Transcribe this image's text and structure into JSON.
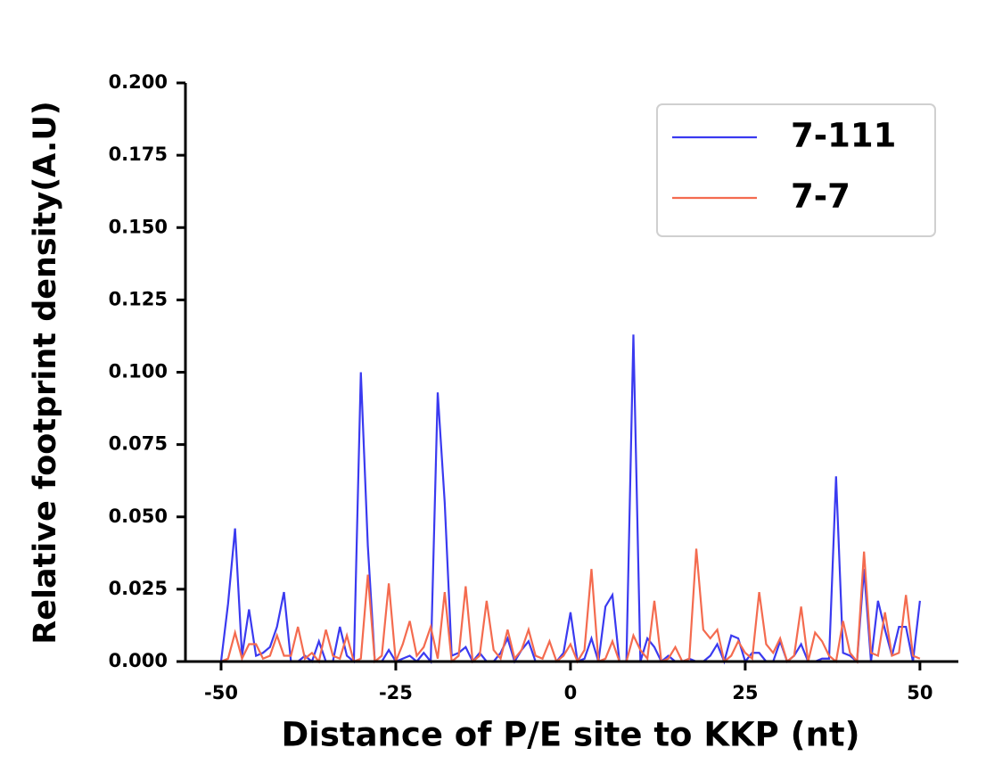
{
  "chart_data": {
    "type": "line",
    "x_label": "Distance of P/E site to KKP (nt)",
    "y_label": "Relative footprint density(A.U)",
    "x": [
      -50,
      -49,
      -48,
      -47,
      -46,
      -45,
      -44,
      -43,
      -42,
      -41,
      -40,
      -39,
      -38,
      -37,
      -36,
      -35,
      -34,
      -33,
      -32,
      -31,
      -30,
      -29,
      -28,
      -27,
      -26,
      -25,
      -24,
      -23,
      -22,
      -21,
      -20,
      -19,
      -18,
      -17,
      -16,
      -15,
      -14,
      -13,
      -12,
      -11,
      -10,
      -9,
      -8,
      -7,
      -6,
      -5,
      -4,
      -3,
      -2,
      -1,
      0,
      1,
      2,
      3,
      4,
      5,
      6,
      7,
      8,
      9,
      10,
      11,
      12,
      13,
      14,
      15,
      16,
      17,
      18,
      19,
      20,
      21,
      22,
      23,
      24,
      25,
      26,
      27,
      28,
      29,
      30,
      31,
      32,
      33,
      34,
      35,
      36,
      37,
      38,
      39,
      40,
      41,
      42,
      43,
      44,
      45,
      46,
      47,
      48,
      49,
      50
    ],
    "series": [
      {
        "name": "7-111",
        "color": "#3a3af0",
        "values": [
          0,
          0.02,
          0.046,
          0.002,
          0.018,
          0.002,
          0.003,
          0.005,
          0.012,
          0.024,
          0,
          0,
          0.002,
          0,
          0.007,
          0,
          0,
          0.012,
          0.002,
          0,
          0.1,
          0.04,
          0,
          0,
          0.004,
          0,
          0.001,
          0.002,
          0,
          0.003,
          0,
          0.093,
          0.055,
          0.002,
          0.003,
          0.005,
          0,
          0.003,
          0,
          0,
          0.003,
          0.008,
          0,
          0.004,
          0.007,
          0,
          0,
          0,
          0,
          0.003,
          0.017,
          0,
          0.001,
          0.008,
          0,
          0.019,
          0.023,
          0,
          0,
          0.113,
          0,
          0.008,
          0.005,
          0,
          0.002,
          0,
          0,
          0.001,
          0,
          0,
          0.002,
          0.006,
          0,
          0.009,
          0.008,
          0,
          0.003,
          0.003,
          0,
          0,
          0.007,
          0,
          0.002,
          0.006,
          0,
          0,
          0.001,
          0.001,
          0.064,
          0.003,
          0.002,
          0,
          0.032,
          0,
          0.021,
          0.011,
          0.002,
          0.012,
          0.012,
          0,
          0.021
        ]
      },
      {
        "name": "7-7",
        "color": "#f46b4f",
        "values": [
          0,
          0.001,
          0.01,
          0.001,
          0.006,
          0.006,
          0.001,
          0.002,
          0.009,
          0.002,
          0.002,
          0.012,
          0.001,
          0.003,
          0,
          0.011,
          0.002,
          0.001,
          0.009,
          0,
          0.001,
          0.03,
          0,
          0.002,
          0.027,
          0,
          0.006,
          0.014,
          0.002,
          0.005,
          0.012,
          0.001,
          0.024,
          0,
          0.002,
          0.026,
          0,
          0.002,
          0.021,
          0.004,
          0.001,
          0.011,
          0.001,
          0.004,
          0.011,
          0.002,
          0.001,
          0.007,
          0,
          0.002,
          0.006,
          0,
          0.004,
          0.032,
          0,
          0.001,
          0.007,
          0,
          0,
          0.009,
          0.004,
          0.001,
          0.021,
          0,
          0.001,
          0.005,
          0,
          0.001,
          0.039,
          0.011,
          0.008,
          0.011,
          0,
          0.002,
          0.007,
          0.003,
          0.001,
          0.024,
          0.006,
          0.003,
          0.008,
          0,
          0.002,
          0.019,
          0,
          0.01,
          0.007,
          0.002,
          0,
          0.014,
          0.003,
          0,
          0.038,
          0.003,
          0.002,
          0.017,
          0.002,
          0.003,
          0.023,
          0.002,
          0.001
        ]
      }
    ],
    "xlim": [
      -55.1,
      55.5
    ],
    "ylim": [
      0,
      0.2
    ],
    "xticks": [
      -50,
      -25,
      0,
      25,
      50
    ],
    "yticks": [
      {
        "value": 0,
        "label": "0.000"
      },
      {
        "value": 0.025,
        "label": "0.025"
      },
      {
        "value": 0.05,
        "label": "0.050"
      },
      {
        "value": 0.075,
        "label": "0.075"
      },
      {
        "value": 0.1,
        "label": "0.100"
      },
      {
        "value": 0.125,
        "label": "0.125"
      },
      {
        "value": 0.15,
        "label": "0.150"
      },
      {
        "value": 0.175,
        "label": "0.175"
      },
      {
        "value": 0.2,
        "label": "0.200"
      }
    ],
    "legend": "upper right"
  }
}
